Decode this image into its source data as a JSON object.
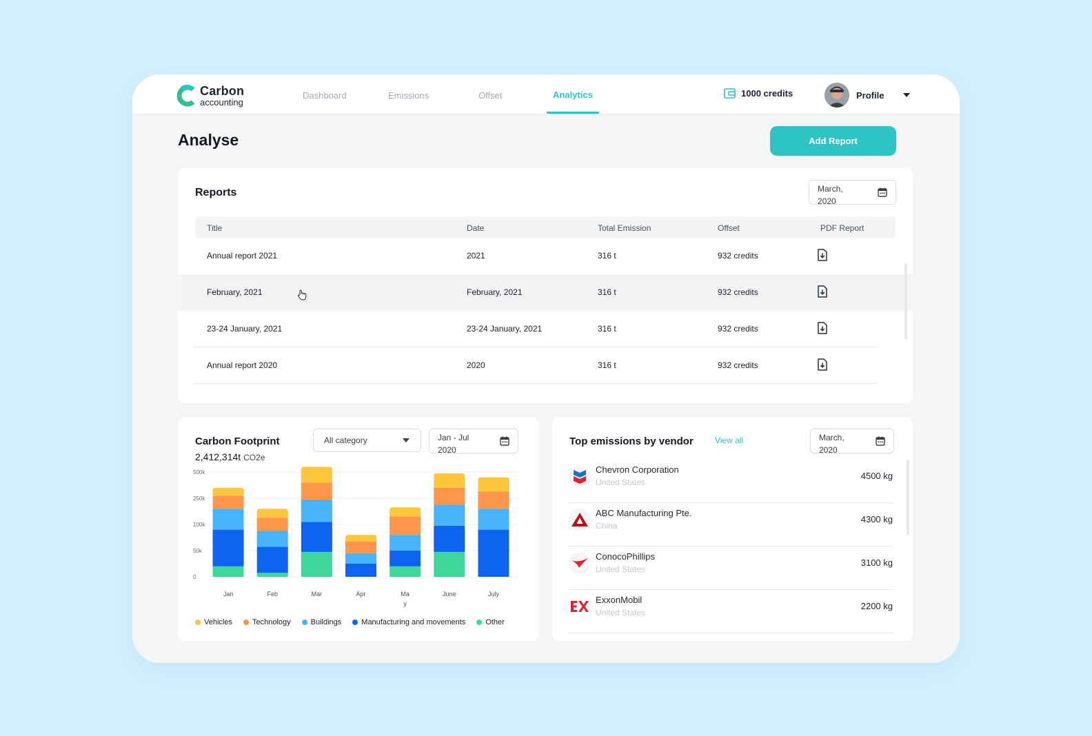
{
  "app": {
    "logo_title": "Carbon",
    "logo_sub": "accounting",
    "nav": [
      "Dashboard",
      "Emissions",
      "Offset",
      "Analytics"
    ],
    "active_nav": "Analytics",
    "credits": "1000 credits",
    "profile": "Profile",
    "brand_color": "#2ec4c6"
  },
  "page": {
    "title": "Analyse",
    "add_report_label": "Add Report"
  },
  "reports": {
    "title": "Reports",
    "date_line1": "March,",
    "date_line2": "2020",
    "columns": [
      "Title",
      "Date",
      "Total Emission",
      "Offset",
      "PDF Report"
    ],
    "rows": [
      {
        "title": "Annual report 2021",
        "date": "2021",
        "emission": "316 t",
        "offset": "932 credits",
        "pdf_icon": "download-file-icon"
      },
      {
        "title": "February, 2021",
        "date": "February, 2021",
        "emission": "316 t",
        "offset": "932 credits",
        "pdf_icon": "download-file-icon"
      },
      {
        "title": "23-24 January, 2021",
        "date": "23-24 January, 2021",
        "emission": "316 t",
        "offset": "932 credits",
        "pdf_icon": "download-file-icon"
      },
      {
        "title": "Annual report 2020",
        "date": "2020",
        "emission": "316 t",
        "offset": "932 credits",
        "pdf_icon": "download-file-icon"
      }
    ]
  },
  "footprint": {
    "title": "Carbon Footprint",
    "total": "2,412,314t",
    "unit": "CO2e",
    "category_select": "All category",
    "range_line1": "Jan - Jul",
    "range_line2": "2020"
  },
  "chart_data": {
    "type": "bar",
    "stacked": true,
    "categories": [
      "Jan",
      "Feb",
      "Mar",
      "Apr",
      "Ma\ny",
      "June",
      "July"
    ],
    "y_ticks": [
      "500k",
      "250k",
      "100k",
      "50k",
      "0"
    ],
    "series": [
      {
        "name": "Other",
        "color": "#3ed89a",
        "values": [
          0.4,
          0.15,
          0.95,
          0,
          0.4,
          0.95,
          0
        ]
      },
      {
        "name": "Manufacturing and movements",
        "color": "#0d64ee",
        "values": [
          1.4,
          1.0,
          1.15,
          0.5,
          0.6,
          1.0,
          1.8
        ]
      },
      {
        "name": "Buildings",
        "color": "#46b3fb",
        "values": [
          0.8,
          0.6,
          0.85,
          0.4,
          0.6,
          0.8,
          0.8
        ]
      },
      {
        "name": "Technology",
        "color": "#fe9548",
        "values": [
          0.5,
          0.5,
          0.65,
          0.45,
          0.7,
          0.65,
          0.65
        ]
      },
      {
        "name": "Vehicles",
        "color": "#fec63c",
        "values": [
          0.3,
          0.35,
          0.6,
          0.25,
          0.35,
          0.55,
          0.55
        ]
      }
    ],
    "y_axis": "ordinal tick scale: 0, 50k, 100k, 250k, 500k at equal spacing",
    "grid": true,
    "legend": "bottom"
  },
  "legend_order": [
    "Vehicles",
    "Technology",
    "Buildings",
    "Manufacturing and movements",
    "Other"
  ],
  "vendors": {
    "title": "Top emissions by vendor",
    "view_all": "View all",
    "date_line1": "March,",
    "date_line2": "2020",
    "items": [
      {
        "name": "Chevron Corporation",
        "country": "United States",
        "value": "4500 kg",
        "icon": "chevron-logo-icon"
      },
      {
        "name": "ABC Manufacturing Pte.",
        "country": "China",
        "value": "4300 kg",
        "icon": "abc-logo-icon"
      },
      {
        "name": "ConocoPhillips",
        "country": "United States",
        "value": "3100 kg",
        "icon": "conocophillips-logo-icon"
      },
      {
        "name": "ExxonMobil",
        "country": "United States",
        "value": "2200 kg",
        "icon": "exxonmobil-logo-icon"
      }
    ]
  }
}
